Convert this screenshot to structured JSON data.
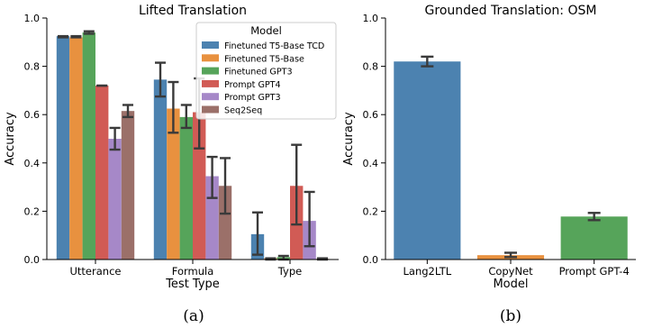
{
  "chart_data": [
    {
      "type": "bar",
      "title": "Lifted Translation",
      "xlabel": "Test Type",
      "ylabel": "Accuracy",
      "ylim": [
        0,
        1.0
      ],
      "yticks": [
        "0.0",
        "0.2",
        "0.4",
        "0.6",
        "0.8",
        "1.0"
      ],
      "categories": [
        "Utterance",
        "Formula",
        "Type"
      ],
      "legend": {
        "title": "Model",
        "placement": "top-right"
      },
      "series": [
        {
          "name": "Finetuned T5-Base TCD",
          "color": "#4c82b0",
          "values": [
            0.925,
            0.745,
            0.105
          ],
          "err_low": [
            0.92,
            0.675,
            0.02
          ],
          "err_high": [
            0.925,
            0.815,
            0.195
          ]
        },
        {
          "name": "Finetuned T5-Base",
          "color": "#e8913f",
          "values": [
            0.92,
            0.625,
            0.005
          ],
          "err_low": [
            0.92,
            0.525,
            0.0
          ],
          "err_high": [
            0.925,
            0.735,
            0.005
          ]
        },
        {
          "name": "Finetuned GPT3",
          "color": "#56a45a",
          "values": [
            0.94,
            0.59,
            0.01
          ],
          "err_low": [
            0.935,
            0.545,
            0.0
          ],
          "err_high": [
            0.945,
            0.64,
            0.015
          ]
        },
        {
          "name": "Prompt GPT4",
          "color": "#d15b55",
          "values": [
            0.72,
            0.61,
            0.305
          ],
          "err_low": [
            0.72,
            0.46,
            0.145
          ],
          "err_high": [
            0.72,
            0.75,
            0.475
          ]
        },
        {
          "name": "Prompt GPT3",
          "color": "#a688c8",
          "values": [
            0.5,
            0.345,
            0.16
          ],
          "err_low": [
            0.455,
            0.255,
            0.055
          ],
          "err_high": [
            0.545,
            0.425,
            0.28
          ]
        },
        {
          "name": "Seq2Seq",
          "color": "#9b7069",
          "values": [
            0.615,
            0.305,
            0.003
          ],
          "err_low": [
            0.59,
            0.19,
            0.0
          ],
          "err_high": [
            0.64,
            0.42,
            0.005
          ]
        }
      ],
      "caption": "(a)"
    },
    {
      "type": "bar",
      "title": "Grounded Translation: OSM",
      "xlabel": "Model",
      "ylabel": "Accuracy",
      "ylim": [
        0,
        1.0
      ],
      "yticks": [
        "0.0",
        "0.2",
        "0.4",
        "0.6",
        "0.8",
        "1.0"
      ],
      "categories": [
        "Lang2LTL",
        "CopyNet",
        "Prompt GPT-4"
      ],
      "colors": [
        "#4c82b0",
        "#e8913f",
        "#56a45a"
      ],
      "values": [
        0.82,
        0.018,
        0.178
      ],
      "err_low": [
        0.8,
        0.01,
        0.163
      ],
      "err_high": [
        0.84,
        0.028,
        0.193
      ],
      "caption": "(b)"
    }
  ]
}
